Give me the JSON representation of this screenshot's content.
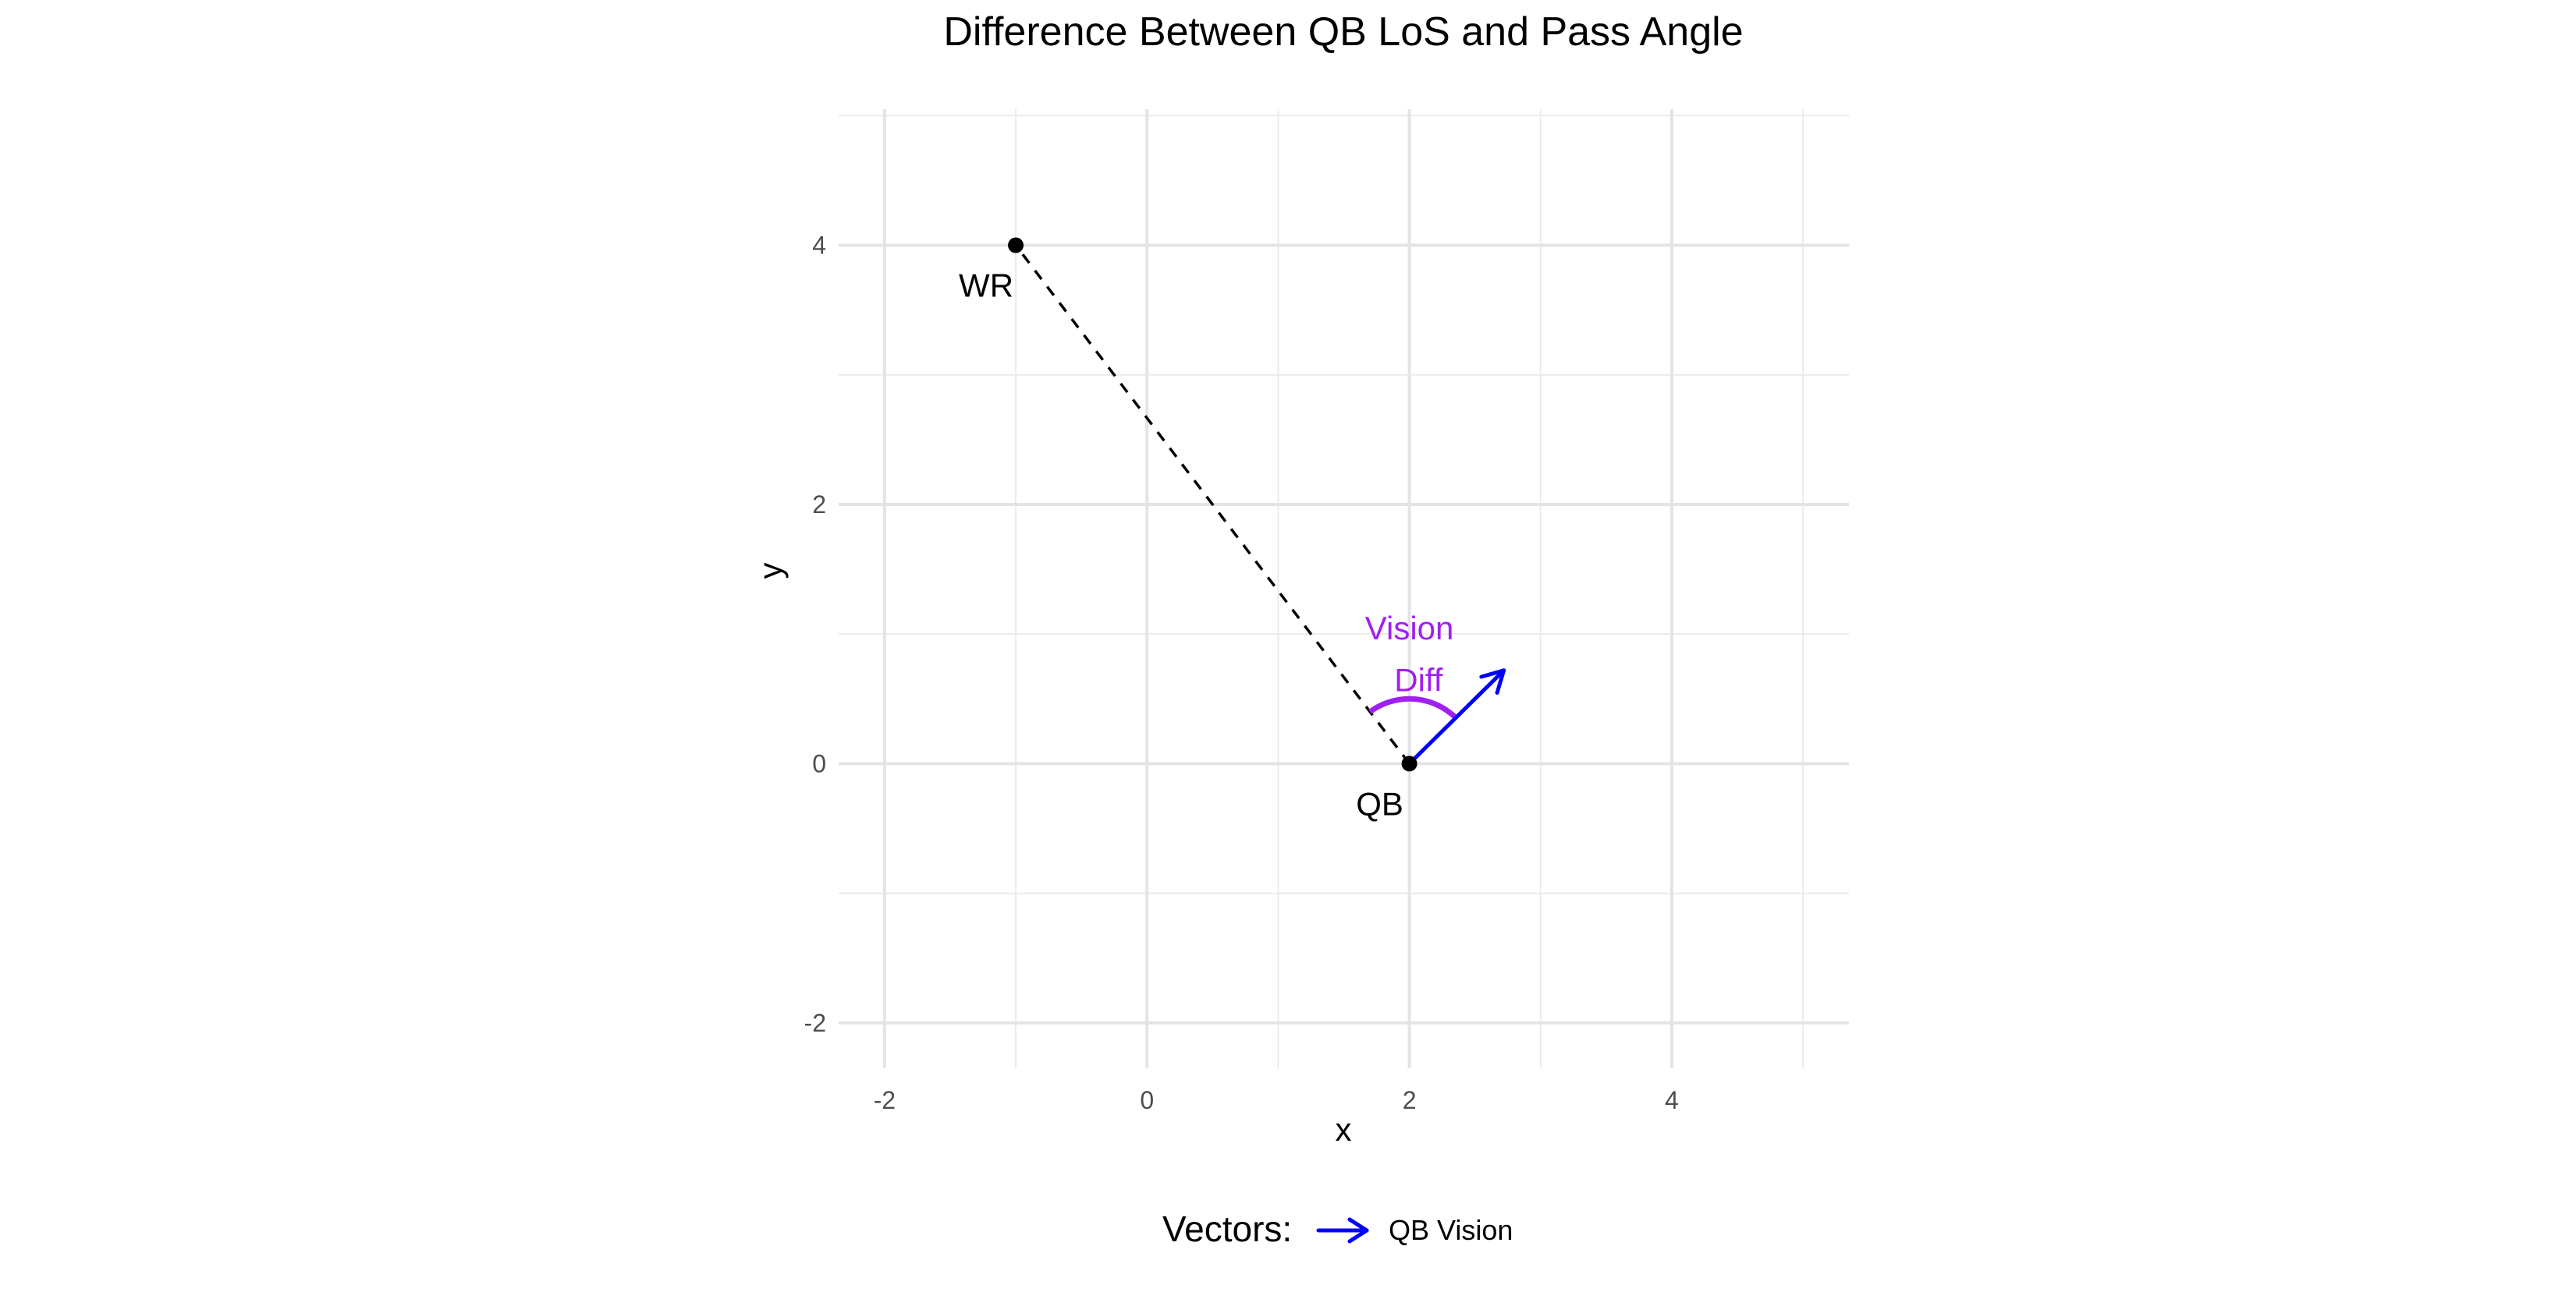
{
  "chart_data": {
    "type": "scatter",
    "title": "Difference Between QB LoS and Pass Angle",
    "xlabel": "x",
    "ylabel": "y",
    "xlim": [
      -2.35,
      5.35
    ],
    "ylim": [
      -2.35,
      5.05
    ],
    "x_ticks": [
      -2,
      0,
      2,
      4
    ],
    "x_tick_labels": [
      "-2",
      "0",
      "2",
      "4"
    ],
    "y_ticks": [
      -2,
      0,
      2,
      4
    ],
    "y_tick_labels": [
      "-2",
      "0",
      "2",
      "4"
    ],
    "x_minor_ticks": [
      -1,
      1,
      3,
      5
    ],
    "y_minor_ticks": [
      -1,
      1,
      3,
      5
    ],
    "grid": true,
    "points": [
      {
        "label": "WR",
        "x": -1,
        "y": 4
      },
      {
        "label": "QB",
        "x": 2,
        "y": 0
      }
    ],
    "line_of_sight": {
      "from": [
        2,
        0
      ],
      "to": [
        -1,
        4
      ],
      "style": "dashed"
    },
    "vector": {
      "name": "QB Vision",
      "from": [
        2,
        0
      ],
      "to": [
        2.72,
        0.72
      ],
      "color": "#0000ff"
    },
    "angle_arc": {
      "center": [
        2,
        0
      ],
      "radius": 0.5,
      "color": "#a020f0"
    },
    "annotation": {
      "line1": "Vision",
      "line2": "Diff",
      "color": "#a020f0"
    },
    "legend": {
      "title": "Vectors:",
      "position": "bottom",
      "items": [
        {
          "label": "QB Vision",
          "color": "#0000ff"
        }
      ]
    }
  }
}
